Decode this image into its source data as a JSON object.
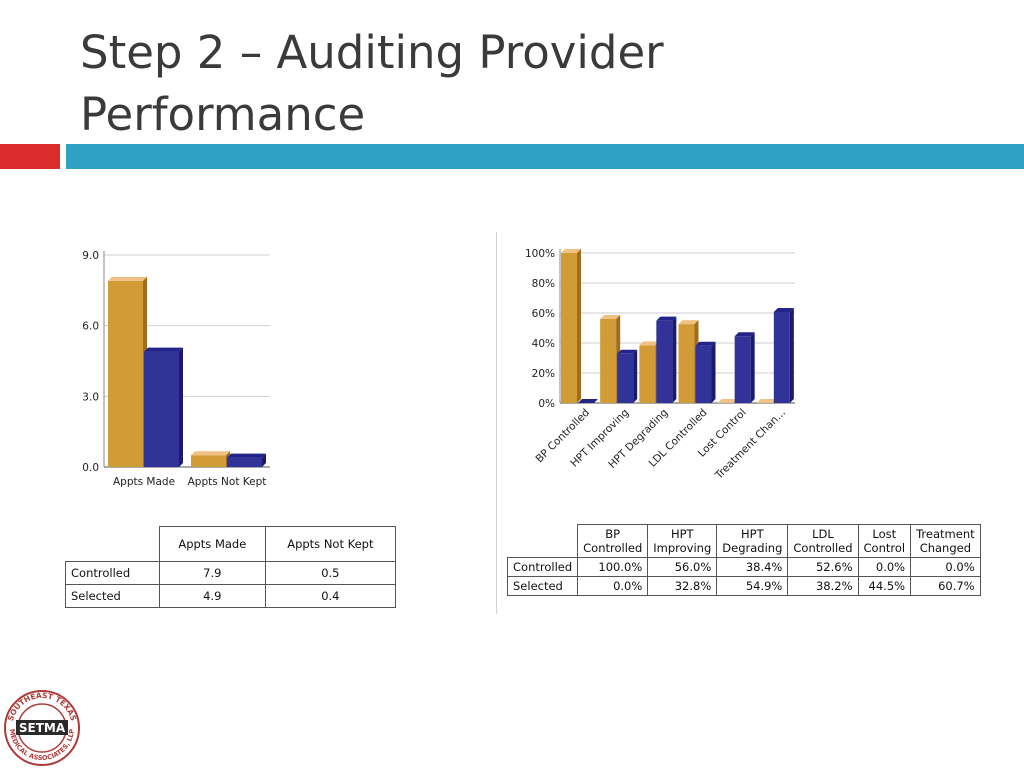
{
  "slide": {
    "title_line1": "Step 2 – Auditing Provider",
    "title_line2": "Performance"
  },
  "colors": {
    "controlled": "#d19b35",
    "controlled_top": "#f1c184",
    "selected": "#323399",
    "selected_top": "#23238a",
    "accent_red": "#dc2d2d",
    "accent_blue": "#2ea1c4"
  },
  "chart_data": [
    {
      "type": "bar",
      "categories": [
        "Appts Made",
        "Appts Not Kept"
      ],
      "series": [
        {
          "values": [
            7.9,
            0.5
          ]
        },
        {
          "values": [
            4.9,
            0.4
          ]
        }
      ],
      "yticks": [
        "0.0",
        "3.0",
        "6.0",
        "9.0"
      ],
      "ylim": [
        0,
        9
      ],
      "grid": true
    },
    {
      "type": "bar",
      "categories": [
        "BP Controlled",
        "HPT Improving",
        "HPT Degrading",
        "LDL Controlled",
        "Lost Control",
        "Treatment Chan..."
      ],
      "series": [
        {
          "values": [
            100.0,
            56.0,
            38.4,
            52.6,
            0.0,
            0.0
          ]
        },
        {
          "values": [
            0.0,
            32.8,
            54.9,
            38.2,
            44.5,
            60.7
          ]
        }
      ],
      "yticks": [
        "0%",
        "20%",
        "40%",
        "60%",
        "80%",
        "100%"
      ],
      "ylim": [
        0,
        100
      ],
      "grid": true
    }
  ],
  "table1": {
    "headers": [
      "Appts Made",
      "Appts Not Kept"
    ],
    "rows": [
      {
        "label": "Controlled",
        "values": [
          "7.9",
          "0.5"
        ]
      },
      {
        "label": "Selected",
        "values": [
          "4.9",
          "0.4"
        ]
      }
    ]
  },
  "table2": {
    "headers": [
      [
        "BP",
        "Controlled"
      ],
      [
        "HPT",
        "Improving"
      ],
      [
        "HPT",
        "Degrading"
      ],
      [
        "LDL",
        "Controlled"
      ],
      [
        "Lost",
        "Control"
      ],
      [
        "Treatment",
        "Changed"
      ]
    ],
    "rows": [
      {
        "label": "Controlled",
        "values": [
          "100.0%",
          "56.0%",
          "38.4%",
          "52.6%",
          "0.0%",
          "0.0%"
        ]
      },
      {
        "label": "Selected",
        "values": [
          "0.0%",
          "32.8%",
          "54.9%",
          "38.2%",
          "44.5%",
          "60.7%"
        ]
      }
    ]
  },
  "logo": {
    "top_text": "SOUTHEAST TEXAS",
    "bottom_text": "MEDICAL ASSOCIATES, LLP",
    "center_text": "SETMA"
  }
}
